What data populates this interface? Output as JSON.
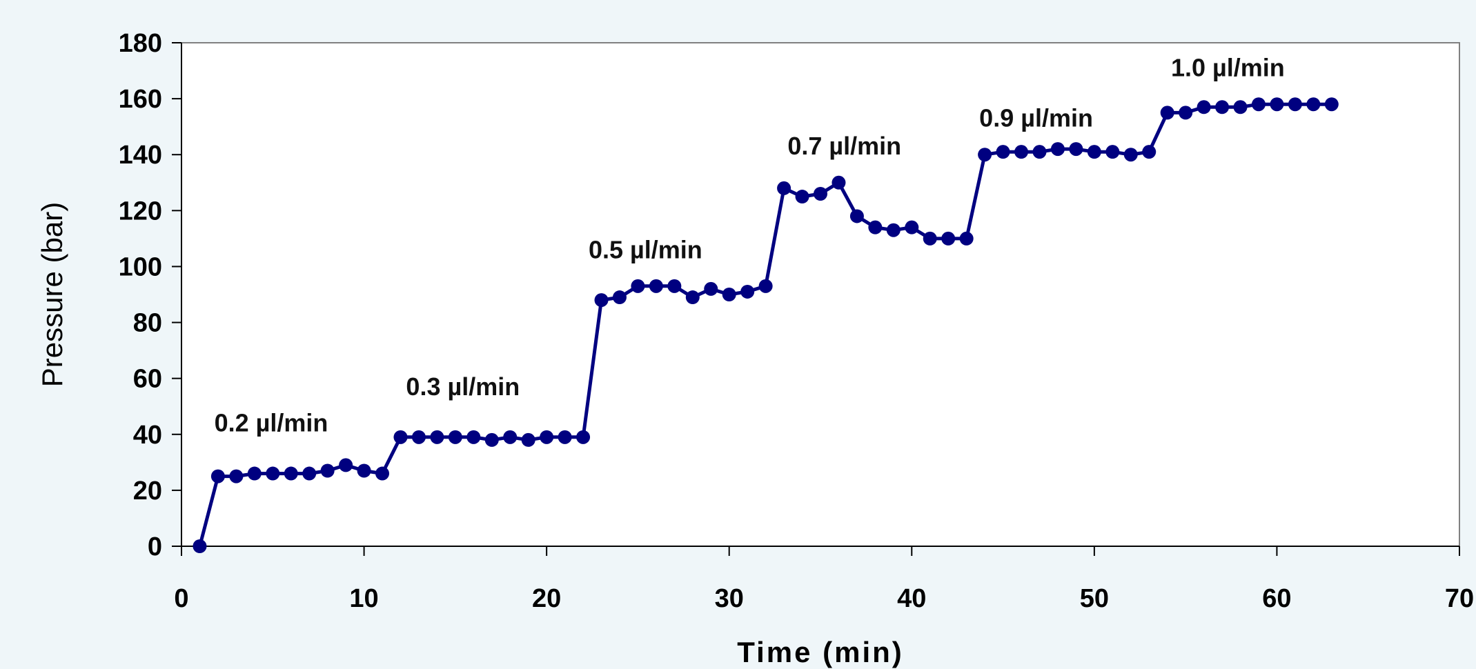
{
  "chart_data": {
    "type": "line",
    "xlabel": "Time (min)",
    "ylabel": "Pressure (bar)",
    "xlim": [
      0,
      70
    ],
    "ylim": [
      0,
      180
    ],
    "x_ticks": [
      0,
      10,
      20,
      30,
      40,
      50,
      60,
      70
    ],
    "y_ticks": [
      0,
      20,
      40,
      60,
      80,
      100,
      120,
      140,
      160,
      180
    ],
    "grid": false,
    "legend": "none",
    "series_color": "#000080",
    "series": [
      {
        "x": [
          1,
          2,
          3,
          4,
          5,
          6,
          7,
          8,
          9,
          10,
          11,
          12,
          13,
          14,
          15,
          16,
          17,
          18,
          19,
          20,
          21,
          22,
          23,
          24,
          25,
          26,
          27,
          28,
          29,
          30,
          31,
          32,
          33,
          34,
          35,
          36,
          37,
          38,
          39,
          40,
          41,
          42,
          43,
          44,
          45,
          46,
          47,
          48,
          49,
          50,
          51,
          52,
          53,
          54,
          55,
          56,
          57,
          58,
          59,
          60,
          61,
          62,
          63
        ],
        "y": [
          0,
          25,
          25,
          26,
          26,
          26,
          26,
          27,
          29,
          27,
          26,
          39,
          39,
          39,
          39,
          39,
          38,
          39,
          38,
          39,
          39,
          39,
          88,
          89,
          93,
          93,
          93,
          89,
          92,
          90,
          91,
          93,
          128,
          125,
          126,
          130,
          118,
          114,
          113,
          114,
          110,
          110,
          110,
          140,
          141,
          141,
          141,
          142,
          142,
          141,
          141,
          140,
          141,
          155,
          155,
          157,
          157,
          157,
          158,
          158,
          158,
          158,
          158
        ]
      }
    ],
    "annotations": [
      {
        "text": "0.2 µl/min",
        "x": 1.8,
        "y": 41
      },
      {
        "text": "0.3 µl/min",
        "x": 12.3,
        "y": 54
      },
      {
        "text": "0.5 µl/min",
        "x": 22.3,
        "y": 103
      },
      {
        "text": "0.7 µl/min",
        "x": 33.2,
        "y": 140
      },
      {
        "text": "0.9 µl/min",
        "x": 43.7,
        "y": 150
      },
      {
        "text": "1.0 µl/min",
        "x": 54.2,
        "y": 168
      }
    ]
  }
}
